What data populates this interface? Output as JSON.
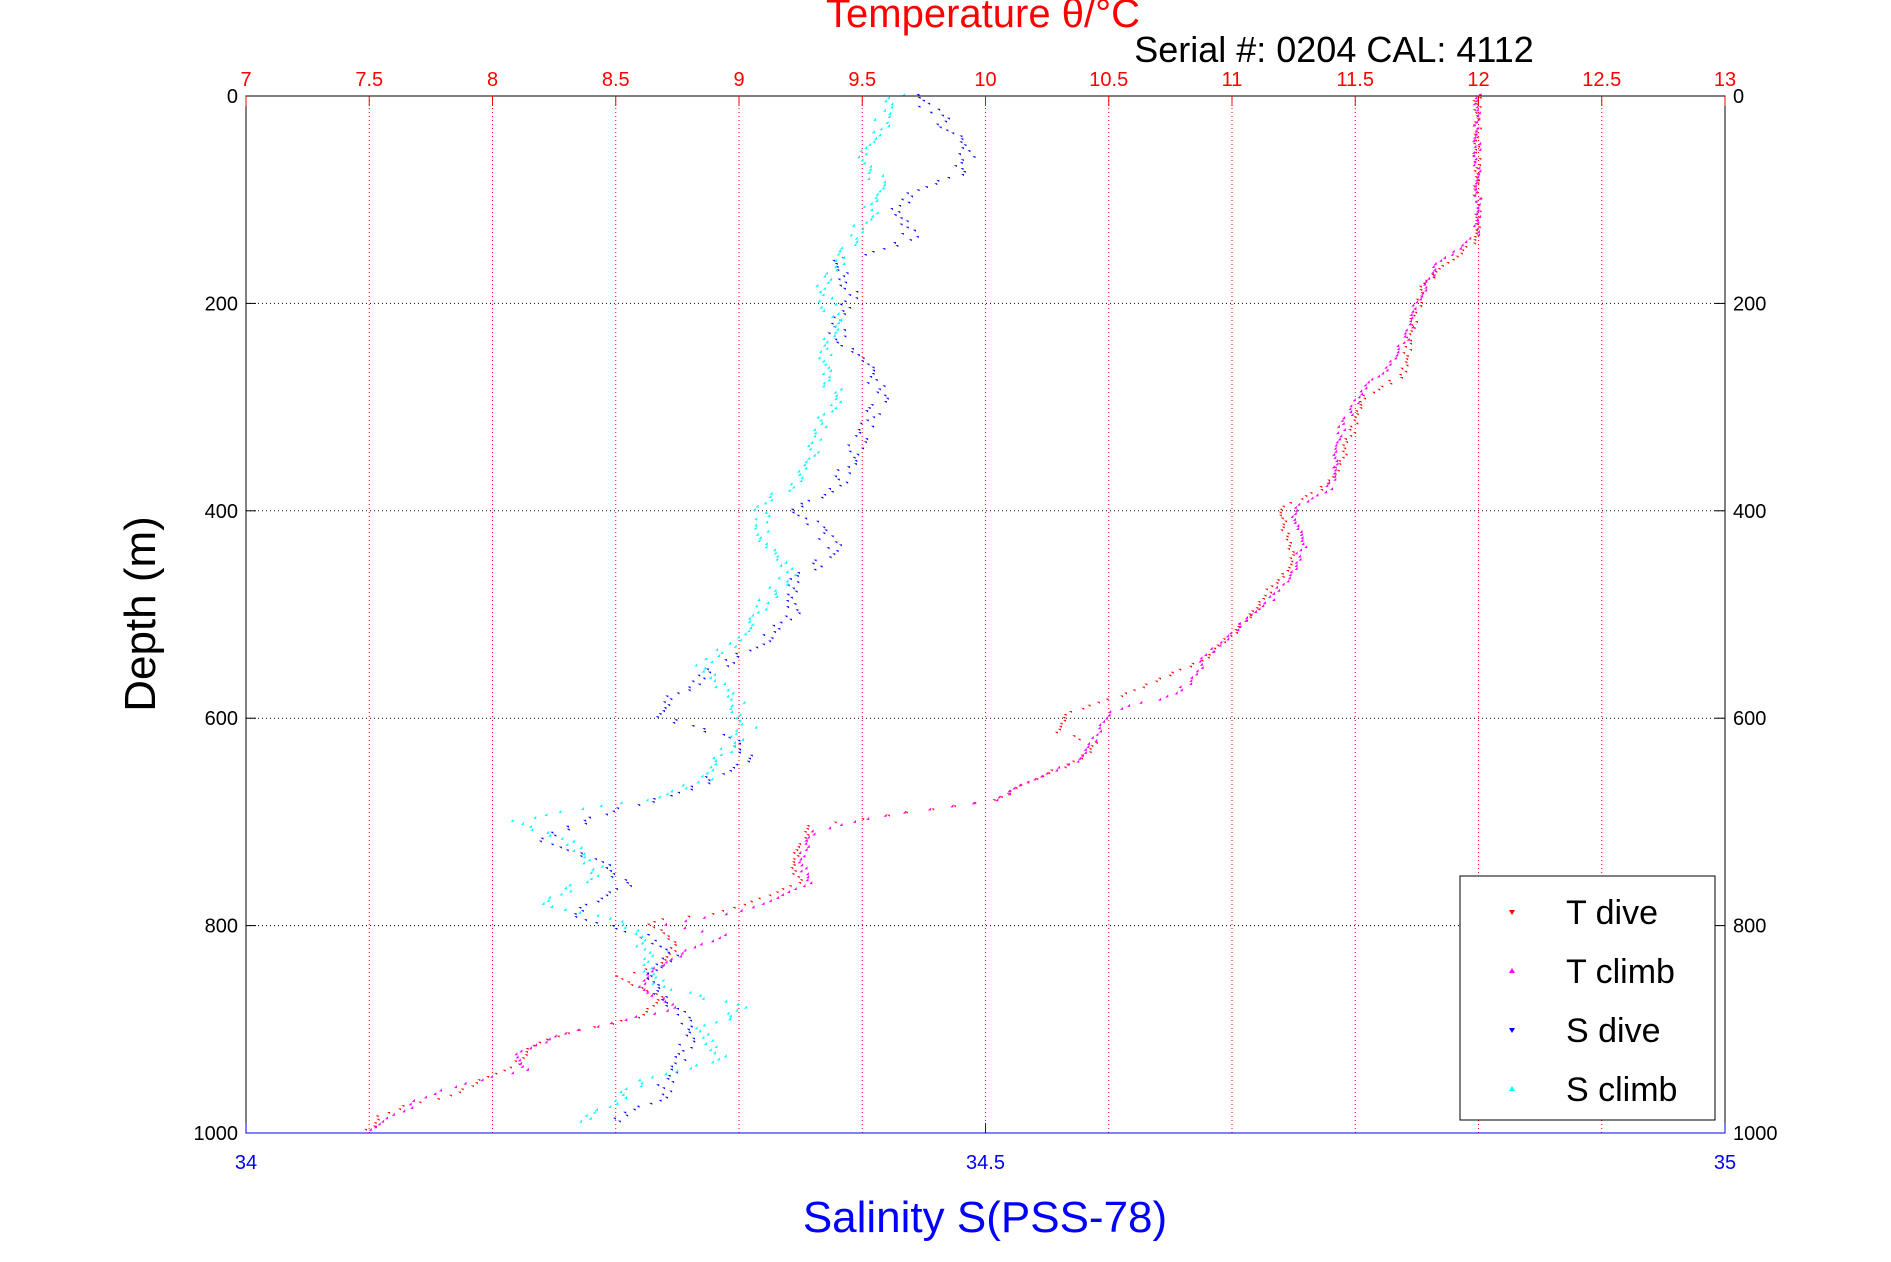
{
  "chart_data": {
    "type": "scatter",
    "title": "Temperature θ/°C",
    "subtitle": "Serial #: 0204  CAL: 4112",
    "ylabel": "Depth (m)",
    "xlabel_bottom": "Salinity S(PSS-78)",
    "y_axis": {
      "range": [
        0,
        1000
      ],
      "reversed": true,
      "ticks": [
        0,
        200,
        400,
        600,
        800,
        1000
      ]
    },
    "temperature_axis": {
      "position": "top",
      "range": [
        7,
        13
      ],
      "ticks": [
        7,
        7.5,
        8,
        8.5,
        9,
        9.5,
        10,
        10.5,
        11,
        11.5,
        12,
        12.5,
        13
      ],
      "tick_labels": [
        "7",
        "7.5",
        "8",
        "8.5",
        "9",
        "9.5",
        "10",
        "10.5",
        "11",
        "11.5",
        "12",
        "12.5",
        "13"
      ]
    },
    "salinity_axis": {
      "position": "bottom",
      "range": [
        34,
        35
      ],
      "ticks": [
        34,
        34.5,
        35
      ],
      "tick_labels": [
        "34",
        "34.5",
        "35"
      ]
    },
    "grid": true,
    "legend_position": "bottom-right",
    "series": [
      {
        "name": "T dive",
        "axis": "temperature",
        "marker": "triangle-down",
        "color": "#ff0000",
        "points": [
          [
            12.0,
            0
          ],
          [
            12.0,
            50
          ],
          [
            12.0,
            100
          ],
          [
            12.0,
            140
          ],
          [
            11.95,
            150
          ],
          [
            11.85,
            165
          ],
          [
            11.78,
            185
          ],
          [
            11.75,
            210
          ],
          [
            11.72,
            240
          ],
          [
            11.7,
            270
          ],
          [
            11.55,
            290
          ],
          [
            11.5,
            320
          ],
          [
            11.45,
            350
          ],
          [
            11.4,
            375
          ],
          [
            11.3,
            390
          ],
          [
            11.2,
            397
          ],
          [
            11.22,
            420
          ],
          [
            11.25,
            450
          ],
          [
            11.15,
            480
          ],
          [
            11.05,
            510
          ],
          [
            10.92,
            540
          ],
          [
            10.75,
            560
          ],
          [
            10.55,
            580
          ],
          [
            10.35,
            595
          ],
          [
            10.3,
            615
          ],
          [
            10.45,
            625
          ],
          [
            10.4,
            640
          ],
          [
            10.2,
            660
          ],
          [
            10.05,
            680
          ],
          [
            9.6,
            695
          ],
          [
            9.3,
            705
          ],
          [
            9.22,
            740
          ],
          [
            9.25,
            760
          ],
          [
            9.1,
            775
          ],
          [
            8.9,
            790
          ],
          [
            8.7,
            795
          ],
          [
            8.65,
            800
          ],
          [
            8.75,
            820
          ],
          [
            8.7,
            840
          ],
          [
            8.5,
            850
          ],
          [
            8.7,
            870
          ],
          [
            8.6,
            890
          ],
          [
            8.3,
            905
          ],
          [
            8.15,
            920
          ],
          [
            8.1,
            935
          ],
          [
            7.95,
            950
          ],
          [
            7.85,
            965
          ],
          [
            7.65,
            975
          ],
          [
            7.55,
            985
          ],
          [
            7.5,
            998
          ]
        ]
      },
      {
        "name": "T climb",
        "axis": "temperature",
        "marker": "triangle-up",
        "color": "#ff00ff",
        "points": [
          [
            12.0,
            0
          ],
          [
            12.0,
            50
          ],
          [
            12.0,
            100
          ],
          [
            12.0,
            135
          ],
          [
            11.95,
            145
          ],
          [
            11.85,
            160
          ],
          [
            11.8,
            180
          ],
          [
            11.75,
            200
          ],
          [
            11.72,
            230
          ],
          [
            11.65,
            260
          ],
          [
            11.55,
            280
          ],
          [
            11.5,
            300
          ],
          [
            11.45,
            320
          ],
          [
            11.43,
            350
          ],
          [
            11.4,
            380
          ],
          [
            11.25,
            398
          ],
          [
            11.3,
            430
          ],
          [
            11.25,
            460
          ],
          [
            11.15,
            490
          ],
          [
            11.05,
            510
          ],
          [
            10.9,
            540
          ],
          [
            10.85,
            565
          ],
          [
            10.75,
            580
          ],
          [
            10.5,
            595
          ],
          [
            10.45,
            620
          ],
          [
            10.4,
            640
          ],
          [
            10.2,
            660
          ],
          [
            10.05,
            680
          ],
          [
            9.6,
            695
          ],
          [
            9.3,
            710
          ],
          [
            9.25,
            740
          ],
          [
            9.3,
            760
          ],
          [
            9.1,
            780
          ],
          [
            8.95,
            790
          ],
          [
            8.7,
            800
          ],
          [
            8.95,
            810
          ],
          [
            8.8,
            825
          ],
          [
            8.65,
            845
          ],
          [
            8.6,
            860
          ],
          [
            8.75,
            880
          ],
          [
            8.5,
            895
          ],
          [
            8.3,
            905
          ],
          [
            8.1,
            925
          ],
          [
            8.15,
            940
          ],
          [
            7.95,
            950
          ],
          [
            7.8,
            960
          ],
          [
            7.7,
            970
          ],
          [
            7.65,
            980
          ],
          [
            7.55,
            990
          ],
          [
            7.5,
            998
          ]
        ]
      },
      {
        "name": "S dive",
        "axis": "salinity",
        "marker": "triangle-down",
        "color": "#0000ff",
        "points": [
          [
            34.45,
            0
          ],
          [
            34.47,
            20
          ],
          [
            34.48,
            40
          ],
          [
            34.49,
            60
          ],
          [
            34.48,
            80
          ],
          [
            34.45,
            95
          ],
          [
            34.44,
            110
          ],
          [
            34.45,
            140
          ],
          [
            34.4,
            160
          ],
          [
            34.41,
            190
          ],
          [
            34.4,
            230
          ],
          [
            34.42,
            260
          ],
          [
            34.43,
            290
          ],
          [
            34.42,
            320
          ],
          [
            34.41,
            350
          ],
          [
            34.4,
            380
          ],
          [
            34.37,
            400
          ],
          [
            34.39,
            420
          ],
          [
            34.4,
            440
          ],
          [
            34.37,
            470
          ],
          [
            34.37,
            500
          ],
          [
            34.35,
            530
          ],
          [
            34.31,
            560
          ],
          [
            34.29,
            580
          ],
          [
            34.28,
            600
          ],
          [
            34.33,
            620
          ],
          [
            34.34,
            640
          ],
          [
            34.3,
            670
          ],
          [
            34.23,
            700
          ],
          [
            34.2,
            720
          ],
          [
            34.24,
            740
          ],
          [
            34.26,
            760
          ],
          [
            34.22,
            790
          ],
          [
            34.27,
            810
          ],
          [
            34.29,
            830
          ],
          [
            34.27,
            850
          ],
          [
            34.28,
            870
          ],
          [
            34.3,
            890
          ],
          [
            34.3,
            910
          ],
          [
            34.29,
            940
          ],
          [
            34.28,
            970
          ],
          [
            34.25,
            990
          ]
        ]
      },
      {
        "name": "S climb",
        "axis": "salinity",
        "marker": "triangle-up",
        "color": "#00ffff",
        "points": [
          [
            34.44,
            0
          ],
          [
            34.43,
            30
          ],
          [
            34.42,
            60
          ],
          [
            34.43,
            90
          ],
          [
            34.42,
            120
          ],
          [
            34.4,
            160
          ],
          [
            34.39,
            190
          ],
          [
            34.4,
            220
          ],
          [
            34.39,
            260
          ],
          [
            34.4,
            290
          ],
          [
            34.39,
            320
          ],
          [
            34.38,
            360
          ],
          [
            34.35,
            400
          ],
          [
            34.35,
            430
          ],
          [
            34.37,
            460
          ],
          [
            34.35,
            490
          ],
          [
            34.34,
            520
          ],
          [
            34.31,
            550
          ],
          [
            34.33,
            580
          ],
          [
            34.34,
            610
          ],
          [
            34.31,
            660
          ],
          [
            34.27,
            680
          ],
          [
            34.18,
            700
          ],
          [
            34.22,
            720
          ],
          [
            34.24,
            750
          ],
          [
            34.2,
            780
          ],
          [
            34.26,
            800
          ],
          [
            34.27,
            830
          ],
          [
            34.28,
            860
          ],
          [
            34.34,
            880
          ],
          [
            34.31,
            900
          ],
          [
            34.32,
            930
          ],
          [
            34.27,
            950
          ],
          [
            34.25,
            970
          ],
          [
            34.23,
            990
          ]
        ]
      }
    ]
  }
}
